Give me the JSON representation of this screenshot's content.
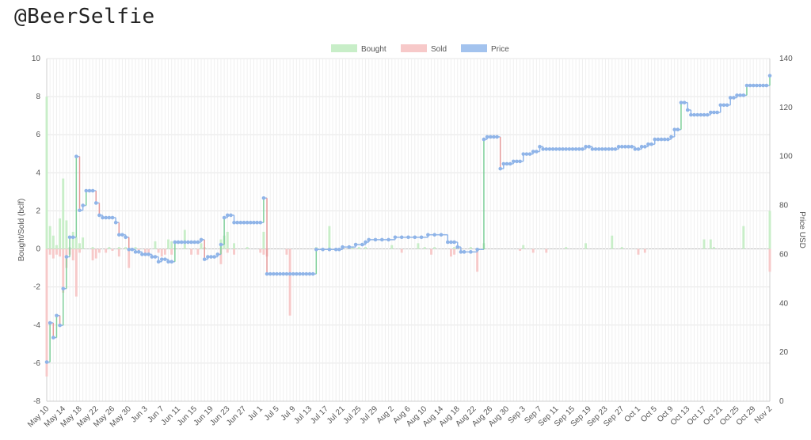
{
  "title": "@BeerSelfie",
  "chart_data": {
    "type": "bar+line",
    "legend": {
      "position": "top",
      "items": [
        {
          "label": "Bought",
          "color": "#c8eec8"
        },
        {
          "label": "Sold",
          "color": "#f7c9c9"
        },
        {
          "label": "Price",
          "color": "#a3c3ee"
        }
      ]
    },
    "y_left": {
      "label": "Bought/Sold (bclf)",
      "min": -8,
      "max": 10,
      "ticks": [
        -8,
        -6,
        -4,
        -2,
        0,
        2,
        4,
        6,
        8,
        10
      ]
    },
    "y_right": {
      "label": "Price USD",
      "min": 0,
      "max": 140,
      "ticks": [
        0,
        20,
        40,
        60,
        80,
        100,
        120,
        140
      ]
    },
    "x_ticks": [
      "May 10",
      "May 14",
      "May 18",
      "May 22",
      "May 26",
      "May 30",
      "Jun 3",
      "Jun 7",
      "Jun 11",
      "Jun 15",
      "Jun 19",
      "Jun 23",
      "Jun 27",
      "Jul 1",
      "Jul 5",
      "Jul 9",
      "Jul 13",
      "Jul 17",
      "Jul 21",
      "Jul 25",
      "Jul 29",
      "Aug 2",
      "Aug 6",
      "Aug 10",
      "Aug 14",
      "Aug 18",
      "Aug 22",
      "Aug 26",
      "Aug 30",
      "Sep 3",
      "Sep 7",
      "Sep 11",
      "Sep 15",
      "Sep 19",
      "Sep 23",
      "Sep 27",
      "Oct 1",
      "Oct 5",
      "Oct 9",
      "Oct 13",
      "Oct 17",
      "Oct 21",
      "Oct 25",
      "Oct 29",
      "Nov 2"
    ],
    "bought": [
      [
        0,
        8
      ],
      [
        1,
        1.2
      ],
      [
        2,
        0.7
      ],
      [
        3,
        0.2
      ],
      [
        4,
        1.6
      ],
      [
        5,
        3.7
      ],
      [
        6,
        1.5
      ],
      [
        7,
        0.1
      ],
      [
        8,
        0.9
      ],
      [
        9,
        0.6
      ],
      [
        10,
        0.3
      ],
      [
        11,
        0.6
      ],
      [
        14,
        0.1
      ],
      [
        19,
        0.1
      ],
      [
        22,
        0.1
      ],
      [
        24,
        0.1
      ],
      [
        27,
        0.1
      ],
      [
        33,
        0.4
      ],
      [
        37,
        0.5
      ],
      [
        38,
        0.4
      ],
      [
        42,
        1.0
      ],
      [
        47,
        0.3
      ],
      [
        48,
        0.1
      ],
      [
        53,
        0.5
      ],
      [
        54,
        0.7
      ],
      [
        55,
        0.9
      ],
      [
        57,
        0.3
      ],
      [
        61,
        0.1
      ],
      [
        66,
        0.9
      ],
      [
        82,
        0.1
      ],
      [
        86,
        1.2
      ],
      [
        93,
        0.1
      ],
      [
        95,
        0.1
      ],
      [
        97,
        0.1
      ],
      [
        105,
        0.2
      ],
      [
        113,
        0.3
      ],
      [
        115,
        0.1
      ],
      [
        118,
        0.1
      ],
      [
        124,
        0.1
      ],
      [
        129,
        0.1
      ],
      [
        133,
        0.3
      ],
      [
        145,
        0.2
      ],
      [
        158,
        0.1
      ],
      [
        164,
        0.3
      ],
      [
        172,
        0.7
      ],
      [
        175,
        0.1
      ],
      [
        200,
        0.5
      ],
      [
        202,
        0.5
      ],
      [
        203,
        0.1
      ],
      [
        212,
        1.2
      ],
      [
        220,
        2.0
      ]
    ],
    "sold": [
      [
        0,
        -6.7
      ],
      [
        1,
        -0.3
      ],
      [
        2,
        -0.5
      ],
      [
        3,
        -0.3
      ],
      [
        4,
        -0.4
      ],
      [
        5,
        -2.3
      ],
      [
        6,
        -1.0
      ],
      [
        7,
        -0.3
      ],
      [
        8,
        -0.6
      ],
      [
        9,
        -2.5
      ],
      [
        10,
        -0.2
      ],
      [
        14,
        -0.6
      ],
      [
        15,
        -0.5
      ],
      [
        16,
        -0.2
      ],
      [
        18,
        -0.2
      ],
      [
        20,
        -0.1
      ],
      [
        22,
        -0.4
      ],
      [
        25,
        -1.0
      ],
      [
        28,
        -0.2
      ],
      [
        30,
        -0.3
      ],
      [
        31,
        -0.2
      ],
      [
        34,
        -0.2
      ],
      [
        35,
        -0.4
      ],
      [
        36,
        -0.3
      ],
      [
        38,
        -0.3
      ],
      [
        44,
        -0.3
      ],
      [
        46,
        -0.3
      ],
      [
        53,
        -0.8
      ],
      [
        55,
        -0.2
      ],
      [
        57,
        -0.3
      ],
      [
        65,
        -0.2
      ],
      [
        66,
        -0.3
      ],
      [
        67,
        -0.4
      ],
      [
        73,
        -0.3
      ],
      [
        74,
        -3.5
      ],
      [
        108,
        -0.2
      ],
      [
        117,
        -0.3
      ],
      [
        123,
        -0.4
      ],
      [
        124,
        -0.3
      ],
      [
        131,
        -1.2
      ],
      [
        144,
        -0.1
      ],
      [
        148,
        -0.2
      ],
      [
        152,
        -0.2
      ],
      [
        180,
        -0.3
      ],
      [
        182,
        -0.2
      ],
      [
        220,
        -1.2
      ]
    ],
    "price": [
      [
        0,
        16
      ],
      [
        1,
        32
      ],
      [
        2,
        26
      ],
      [
        3,
        35
      ],
      [
        4,
        31
      ],
      [
        5,
        46
      ],
      [
        6,
        59
      ],
      [
        7,
        67
      ],
      [
        8,
        67
      ],
      [
        9,
        100
      ],
      [
        10,
        78
      ],
      [
        11,
        80
      ],
      [
        12,
        86
      ],
      [
        13,
        86
      ],
      [
        14,
        86
      ],
      [
        15,
        81
      ],
      [
        16,
        76
      ],
      [
        17,
        75
      ],
      [
        18,
        75
      ],
      [
        19,
        75
      ],
      [
        20,
        75
      ],
      [
        21,
        73
      ],
      [
        22,
        68
      ],
      [
        23,
        68
      ],
      [
        24,
        67
      ],
      [
        25,
        62
      ],
      [
        26,
        62
      ],
      [
        27,
        61
      ],
      [
        28,
        61
      ],
      [
        29,
        60
      ],
      [
        30,
        60
      ],
      [
        31,
        60
      ],
      [
        32,
        59
      ],
      [
        33,
        59
      ],
      [
        34,
        57
      ],
      [
        35,
        58
      ],
      [
        36,
        58
      ],
      [
        37,
        57
      ],
      [
        38,
        57
      ],
      [
        39,
        65
      ],
      [
        40,
        65
      ],
      [
        41,
        65
      ],
      [
        42,
        65
      ],
      [
        43,
        65
      ],
      [
        44,
        65
      ],
      [
        45,
        65
      ],
      [
        46,
        65
      ],
      [
        47,
        66
      ],
      [
        48,
        58
      ],
      [
        49,
        59
      ],
      [
        50,
        59
      ],
      [
        51,
        59
      ],
      [
        52,
        60
      ],
      [
        53,
        64
      ],
      [
        54,
        75
      ],
      [
        55,
        76
      ],
      [
        56,
        76
      ],
      [
        57,
        73
      ],
      [
        58,
        73
      ],
      [
        59,
        73
      ],
      [
        60,
        73
      ],
      [
        61,
        73
      ],
      [
        62,
        73
      ],
      [
        63,
        73
      ],
      [
        64,
        73
      ],
      [
        65,
        73
      ],
      [
        66,
        83
      ],
      [
        67,
        52
      ],
      [
        68,
        52
      ],
      [
        69,
        52
      ],
      [
        70,
        52
      ],
      [
        71,
        52
      ],
      [
        72,
        52
      ],
      [
        73,
        52
      ],
      [
        74,
        52
      ],
      [
        75,
        52
      ],
      [
        76,
        52
      ],
      [
        77,
        52
      ],
      [
        78,
        52
      ],
      [
        79,
        52
      ],
      [
        80,
        52
      ],
      [
        81,
        52
      ],
      [
        82,
        62
      ],
      [
        84,
        62
      ],
      [
        86,
        62
      ],
      [
        88,
        62
      ],
      [
        89,
        62
      ],
      [
        90,
        63
      ],
      [
        92,
        63
      ],
      [
        94,
        64
      ],
      [
        96,
        64
      ],
      [
        97,
        65
      ],
      [
        98,
        66
      ],
      [
        100,
        66
      ],
      [
        102,
        66
      ],
      [
        104,
        66
      ],
      [
        106,
        67
      ],
      [
        108,
        67
      ],
      [
        110,
        67
      ],
      [
        112,
        67
      ],
      [
        114,
        67
      ],
      [
        116,
        68
      ],
      [
        118,
        68
      ],
      [
        120,
        68
      ],
      [
        122,
        65
      ],
      [
        123,
        65
      ],
      [
        124,
        65
      ],
      [
        125,
        63
      ],
      [
        126,
        61
      ],
      [
        127,
        61
      ],
      [
        129,
        61
      ],
      [
        131,
        62
      ],
      [
        133,
        107
      ],
      [
        134,
        108
      ],
      [
        135,
        108
      ],
      [
        136,
        108
      ],
      [
        137,
        108
      ],
      [
        138,
        95
      ],
      [
        139,
        97
      ],
      [
        140,
        97
      ],
      [
        141,
        97
      ],
      [
        142,
        98
      ],
      [
        143,
        98
      ],
      [
        144,
        98
      ],
      [
        145,
        101
      ],
      [
        146,
        101
      ],
      [
        147,
        101
      ],
      [
        148,
        102
      ],
      [
        149,
        102
      ],
      [
        150,
        104
      ],
      [
        151,
        103
      ],
      [
        152,
        103
      ],
      [
        153,
        103
      ],
      [
        154,
        103
      ],
      [
        155,
        103
      ],
      [
        156,
        103
      ],
      [
        157,
        103
      ],
      [
        158,
        103
      ],
      [
        159,
        103
      ],
      [
        160,
        103
      ],
      [
        161,
        103
      ],
      [
        162,
        103
      ],
      [
        163,
        103
      ],
      [
        164,
        104
      ],
      [
        165,
        104
      ],
      [
        166,
        103
      ],
      [
        167,
        103
      ],
      [
        168,
        103
      ],
      [
        169,
        103
      ],
      [
        170,
        103
      ],
      [
        171,
        103
      ],
      [
        172,
        103
      ],
      [
        173,
        103
      ],
      [
        174,
        104
      ],
      [
        175,
        104
      ],
      [
        176,
        104
      ],
      [
        177,
        104
      ],
      [
        178,
        104
      ],
      [
        179,
        103
      ],
      [
        180,
        103
      ],
      [
        181,
        104
      ],
      [
        182,
        104
      ],
      [
        183,
        105
      ],
      [
        184,
        105
      ],
      [
        185,
        107
      ],
      [
        186,
        107
      ],
      [
        187,
        107
      ],
      [
        188,
        107
      ],
      [
        189,
        107
      ],
      [
        190,
        108
      ],
      [
        191,
        111
      ],
      [
        192,
        111
      ],
      [
        193,
        122
      ],
      [
        194,
        122
      ],
      [
        195,
        119
      ],
      [
        196,
        117
      ],
      [
        197,
        117
      ],
      [
        198,
        117
      ],
      [
        199,
        117
      ],
      [
        200,
        117
      ],
      [
        201,
        117
      ],
      [
        202,
        118
      ],
      [
        203,
        118
      ],
      [
        204,
        118
      ],
      [
        205,
        121
      ],
      [
        206,
        121
      ],
      [
        207,
        121
      ],
      [
        208,
        124
      ],
      [
        209,
        124
      ],
      [
        210,
        125
      ],
      [
        211,
        125
      ],
      [
        212,
        125
      ],
      [
        213,
        129
      ],
      [
        214,
        129
      ],
      [
        215,
        129
      ],
      [
        216,
        129
      ],
      [
        217,
        129
      ],
      [
        218,
        129
      ],
      [
        219,
        129
      ],
      [
        220,
        133
      ]
    ]
  }
}
